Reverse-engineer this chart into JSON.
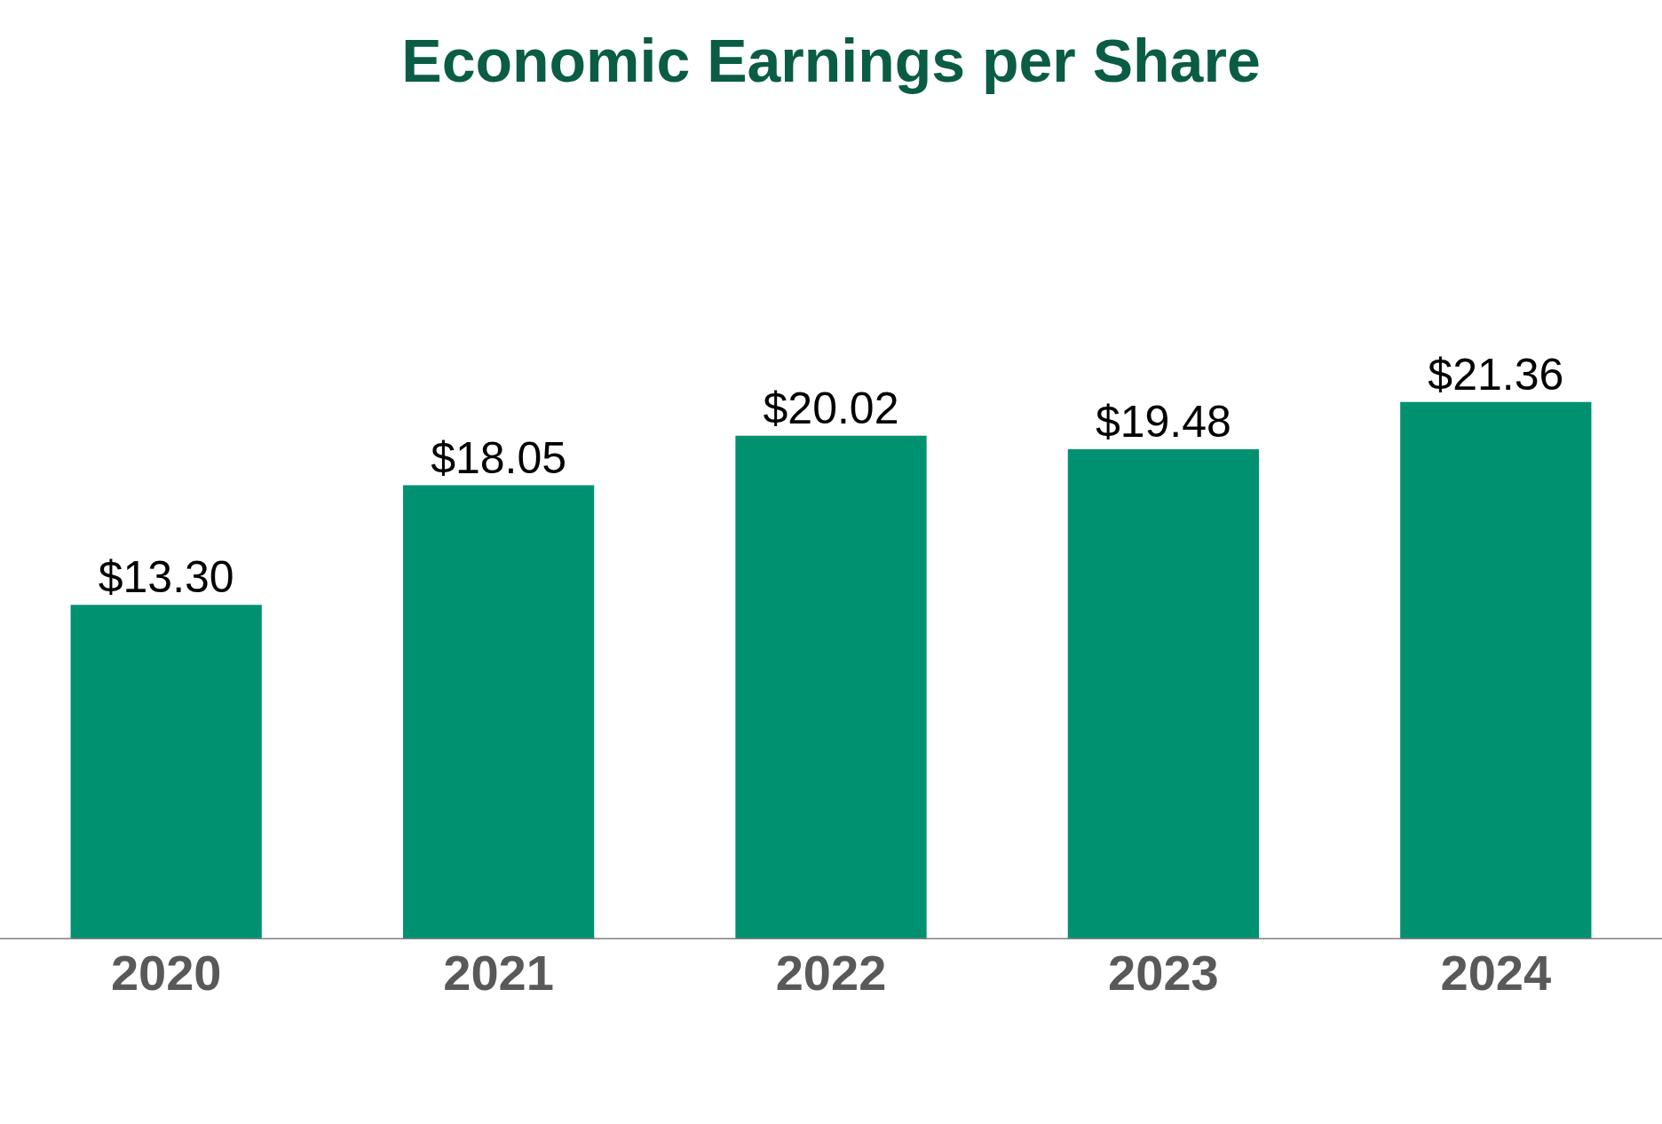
{
  "chart_data": {
    "type": "bar",
    "title": "Economic Earnings per Share",
    "categories": [
      "2020",
      "2021",
      "2022",
      "2023",
      "2024"
    ],
    "values": [
      13.3,
      18.05,
      20.02,
      19.48,
      21.36
    ],
    "value_labels": [
      "$13.30",
      "$18.05",
      "$20.02",
      "$19.48",
      "$21.36"
    ],
    "color": "#009270",
    "grid": false,
    "legend": false
  }
}
